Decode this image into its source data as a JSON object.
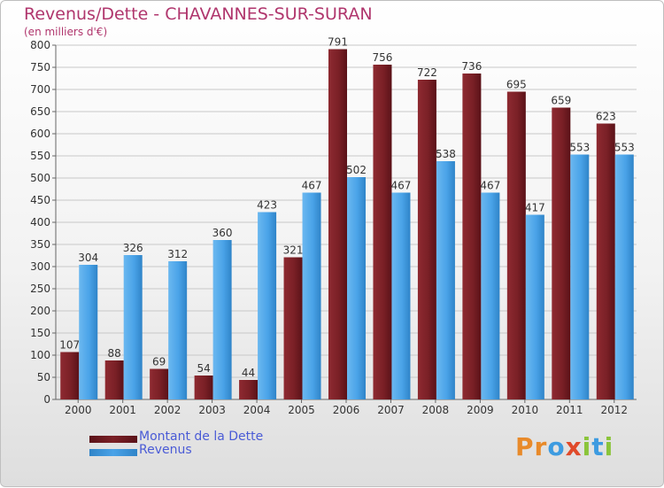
{
  "colors": {
    "dette": "#7a2026",
    "revenus": "#4aa3e8",
    "title": "#b0366d",
    "legend_text": "#4a5bd6"
  },
  "chart_data": {
    "type": "bar",
    "title": "Revenus/Dette - CHAVANNES-SUR-SURAN",
    "subtitle": "(en milliers d'€)",
    "categories": [
      "2000",
      "2001",
      "2002",
      "2003",
      "2004",
      "2005",
      "2006",
      "2007",
      "2008",
      "2009",
      "2010",
      "2011",
      "2012"
    ],
    "series": [
      {
        "name": "Montant de la Dette",
        "values": [
          107,
          88,
          69,
          54,
          44,
          321,
          791,
          756,
          722,
          736,
          695,
          659,
          623
        ]
      },
      {
        "name": "Revenus",
        "values": [
          304,
          326,
          312,
          360,
          423,
          467,
          502,
          467,
          538,
          467,
          417,
          553,
          553
        ]
      }
    ],
    "ylim": [
      0,
      800
    ],
    "yticks": [
      0,
      50,
      100,
      150,
      200,
      250,
      300,
      350,
      400,
      450,
      500,
      550,
      600,
      650,
      700,
      750,
      800
    ],
    "grid": true,
    "legend": "bottom-left"
  },
  "logo": {
    "letters": [
      "P",
      "r",
      "o",
      "x",
      "i",
      "t",
      "i"
    ],
    "letter_colors": [
      "#e88a2a",
      "#e88a2a",
      "#3d9be0",
      "#e04a2a",
      "#8ac43a",
      "#3d9be0",
      "#8ac43a"
    ]
  }
}
